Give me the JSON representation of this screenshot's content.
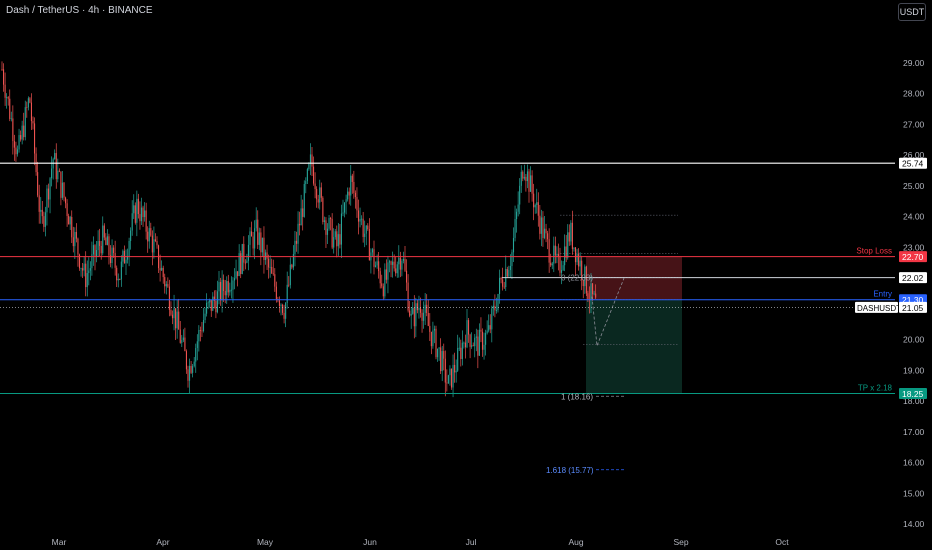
{
  "header": {
    "title": "Dash / TetherUS · 4h · BINANCE",
    "currency_button": "USDT"
  },
  "colors": {
    "background": "#000000",
    "axis_text": "#b2b5be",
    "candle_up": "#26a69a",
    "candle_down": "#ef5350",
    "resistance_line": "#ffffff",
    "stop_line": "#f23645",
    "entry_line": "#2962ff",
    "tp_line": "#089981",
    "risk_zone": "#4a1418",
    "reward_zone": "#0b2a22"
  },
  "chart_data": {
    "type": "candlestick",
    "symbol": "DASHUSDT",
    "timeframe": "4h",
    "x_axis": {
      "months": [
        "Mar",
        "Apr",
        "May",
        "Jun",
        "Jul",
        "Aug",
        "Sep",
        "Oct"
      ]
    },
    "y_axis": {
      "ticks": [
        "14.00",
        "15.00",
        "16.00",
        "17.00",
        "18.00",
        "19.00",
        "20.00",
        "21.00",
        "22.00",
        "23.00",
        "24.00",
        "25.00",
        "26.00",
        "27.00",
        "28.00",
        "29.00"
      ],
      "range": [
        13.6,
        30.2
      ]
    },
    "price_path": [
      {
        "month": "Feb",
        "price": 28.8
      },
      {
        "month": "Feb",
        "price": 26.0
      },
      {
        "month": "Feb",
        "price": 27.9
      },
      {
        "month": "Feb",
        "price": 23.6
      },
      {
        "month": "Feb",
        "price": 25.9
      },
      {
        "month": "Mar",
        "price": 24.2
      },
      {
        "month": "Mar",
        "price": 22.0
      },
      {
        "month": "Mar",
        "price": 23.3
      },
      {
        "month": "Mar",
        "price": 22.1
      },
      {
        "month": "Mar",
        "price": 24.4
      },
      {
        "month": "Mar",
        "price": 23.0
      },
      {
        "month": "Apr",
        "price": 21.2
      },
      {
        "month": "Apr",
        "price": 19.0
      },
      {
        "month": "Apr",
        "price": 20.9
      },
      {
        "month": "Apr",
        "price": 21.6
      },
      {
        "month": "Apr",
        "price": 22.5
      },
      {
        "month": "Apr",
        "price": 23.5
      },
      {
        "month": "May",
        "price": 22.0
      },
      {
        "month": "May",
        "price": 21.0
      },
      {
        "month": "May",
        "price": 23.5
      },
      {
        "month": "May",
        "price": 25.8
      },
      {
        "month": "May",
        "price": 24.0
      },
      {
        "month": "May",
        "price": 23.0
      },
      {
        "month": "May",
        "price": 25.2
      },
      {
        "month": "May",
        "price": 23.6
      },
      {
        "month": "Jun",
        "price": 22.5
      },
      {
        "month": "Jun",
        "price": 21.8
      },
      {
        "month": "Jun",
        "price": 22.4
      },
      {
        "month": "Jun",
        "price": 22.8
      },
      {
        "month": "Jun",
        "price": 20.6
      },
      {
        "month": "Jun",
        "price": 21.2
      },
      {
        "month": "Jun",
        "price": 20.3
      },
      {
        "month": "Jun",
        "price": 19.6
      },
      {
        "month": "Jun",
        "price": 18.5
      },
      {
        "month": "Jun",
        "price": 19.3
      },
      {
        "month": "Jun",
        "price": 20.3
      },
      {
        "month": "Jul",
        "price": 19.8
      },
      {
        "month": "Jul",
        "price": 20.2
      },
      {
        "month": "Jul",
        "price": 21.8
      },
      {
        "month": "Jul",
        "price": 22.8
      },
      {
        "month": "Jul",
        "price": 25.8
      },
      {
        "month": "Jul",
        "price": 24.4
      },
      {
        "month": "Jul",
        "price": 23.1
      },
      {
        "month": "Jul",
        "price": 22.3
      },
      {
        "month": "Jul",
        "price": 23.5
      },
      {
        "month": "Aug",
        "price": 21.5
      },
      {
        "month": "Aug",
        "price": 20.0
      },
      {
        "month": "Aug",
        "price": 21.4
      },
      {
        "month": "Aug",
        "price": 21.05
      }
    ],
    "levels": [
      {
        "name": "resistance",
        "price": 25.74,
        "tag": "25.74",
        "label": ""
      },
      {
        "name": "stop-loss",
        "price": 22.7,
        "tag": "22.70",
        "label": "Stop Loss"
      },
      {
        "name": "level",
        "price": 22.02,
        "tag": "22.02",
        "label": ""
      },
      {
        "name": "entry",
        "price": 21.3,
        "tag": "21.30",
        "label": "Entry"
      },
      {
        "name": "current",
        "price": 21.05,
        "tag": "21.05",
        "label": "DASHUSDT"
      },
      {
        "name": "take-profit",
        "price": 18.25,
        "tag": "18.25",
        "label": "TP x 2.18"
      }
    ],
    "fib_labels": [
      {
        "text": "0 (22.03)",
        "price": 22.03
      },
      {
        "text": "1 (18.16)",
        "price": 18.16
      },
      {
        "text": "1.618 (15.77)",
        "price": 15.77
      }
    ],
    "projection": [
      {
        "month": "Aug",
        "price": 21.4
      },
      {
        "month": "Aug",
        "price": 19.8
      },
      {
        "month": "Aug",
        "price": 22.0
      }
    ],
    "grid": false,
    "legend": "none"
  }
}
